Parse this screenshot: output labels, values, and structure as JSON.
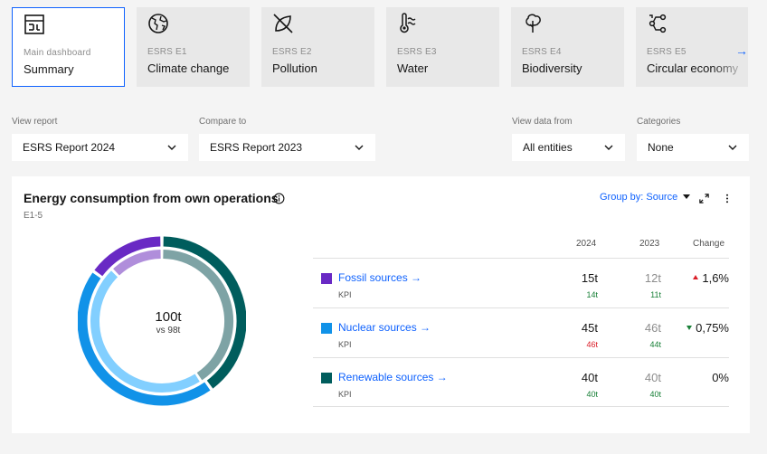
{
  "tabs": [
    {
      "sub": "Main dashboard",
      "name": "Summary",
      "icon": "dashboard-icon",
      "active": true
    },
    {
      "sub": "ESRS E1",
      "name": "Climate change",
      "icon": "globe-icon"
    },
    {
      "sub": "ESRS E2",
      "name": "Pollution",
      "icon": "no-leaf-icon"
    },
    {
      "sub": "ESRS E3",
      "name": "Water",
      "icon": "water-temperature-icon"
    },
    {
      "sub": "ESRS E4",
      "name": "Biodiversity",
      "icon": "tree-icon"
    },
    {
      "sub": "ESRS E5",
      "name": "Circular economy",
      "icon": "circular-flow-icon"
    }
  ],
  "filters": {
    "view_report": {
      "label": "View report",
      "value": "ESRS Report 2024"
    },
    "compare_to": {
      "label": "Compare to",
      "value": "ESRS Report 2023"
    },
    "view_data_from": {
      "label": "View data from",
      "value": "All entities"
    },
    "categories": {
      "label": "Categories",
      "value": "None"
    }
  },
  "card": {
    "title": "Energy consumption from own operations",
    "code": "E1-5",
    "group_by": "Group by: Source",
    "total": "100t",
    "vs": "vs 98t",
    "headers": {
      "y2024": "2024",
      "y2023": "2023",
      "change": "Change"
    },
    "rows": [
      {
        "name": "Fossil sources",
        "kpi": "KPI",
        "v2024": "15t",
        "v2023": "12t",
        "s2024": "14t",
        "s2023": "11t",
        "s2024_status": "good",
        "s2023_status": "good",
        "change": "1,6%",
        "trend": "up",
        "color": "#6929c4"
      },
      {
        "name": "Nuclear sources",
        "kpi": "KPI",
        "v2024": "45t",
        "v2023": "46t",
        "s2024": "46t",
        "s2023": "44t",
        "s2024_status": "bad",
        "s2023_status": "good",
        "change": "0,75%",
        "trend": "down",
        "color": "#1192e8"
      },
      {
        "name": "Renewable sources",
        "kpi": "KPI",
        "v2024": "40t",
        "v2023": "40t",
        "s2024": "40t",
        "s2023": "40t",
        "s2024_status": "good",
        "s2023_status": "good",
        "change": "0%",
        "trend": "none",
        "color": "#005d5d"
      }
    ]
  },
  "chart_data": {
    "type": "pie",
    "variant": "double-donut",
    "categories": [
      "Renewable sources",
      "Nuclear sources",
      "Fossil sources"
    ],
    "series": [
      {
        "name": "2024",
        "values": [
          40,
          45,
          15
        ]
      },
      {
        "name": "2023",
        "values": [
          40,
          46,
          12
        ]
      }
    ],
    "colors": {
      "outer": [
        "#005d5d",
        "#1192e8",
        "#6929c4"
      ],
      "inner": [
        "#7ea3a5",
        "#82cfff",
        "#b08edb"
      ]
    }
  }
}
